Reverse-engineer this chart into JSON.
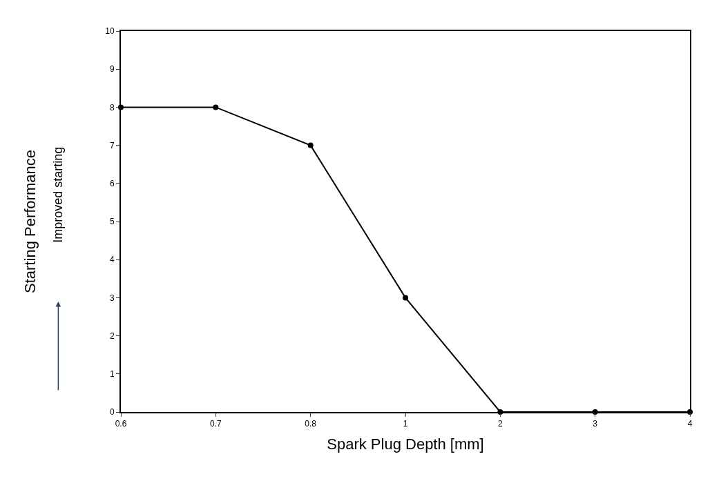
{
  "chart_data": {
    "type": "line",
    "categories": [
      "0.6",
      "0.7",
      "0.8",
      "1",
      "2",
      "3",
      "4"
    ],
    "values": [
      8,
      8,
      7,
      3,
      0,
      0,
      0
    ],
    "color": "#000000",
    "marker": "circle",
    "line_style": "solid",
    "xlabel": "Spark Plug Depth [mm]",
    "ylabel": "Starting Performance",
    "annotations": [
      "Improved starting"
    ],
    "ylim": [
      0,
      10
    ],
    "yticks": [
      0,
      1,
      2,
      3,
      4,
      5,
      6,
      7,
      8,
      9,
      10
    ],
    "legend": false
  }
}
